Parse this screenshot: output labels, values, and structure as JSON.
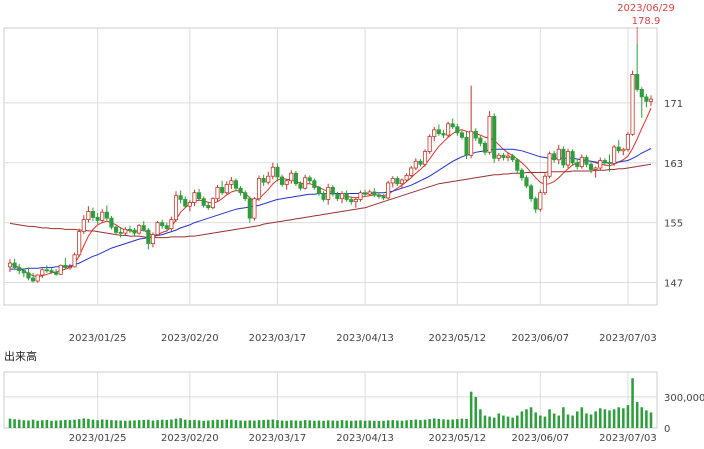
{
  "chart_data": {
    "type": "candlestick",
    "price_axis": {
      "ylim": [
        144,
        181
      ],
      "ticks": [
        "147",
        "155",
        "163",
        "171"
      ]
    },
    "volume_axis": {
      "ylim": [
        0,
        540000
      ],
      "ticks": [
        "300,000",
        "0"
      ]
    },
    "x_ticks": [
      "2023/01/25",
      "2023/02/20",
      "2023/03/17",
      "2023/04/13",
      "2023/05/12",
      "2023/06/07",
      "2023/07/03"
    ],
    "volume_label": "出来高",
    "annotation": {
      "date": "2023/06/29",
      "value": "178.9"
    },
    "colors": {
      "up": "#ffffff",
      "down": "#2e9d3c",
      "up_wick": "#c0392b",
      "down_wick": "#2e9d3c",
      "ma_short": "#e0302a",
      "ma_mid": "#2233cc",
      "ma_long": "#9b3030",
      "annotation": "#d64545",
      "grid": "#dddddd",
      "volume": "#2e9d3c"
    },
    "candles": [
      [
        149.1,
        150.1,
        148.4,
        149.6
      ],
      [
        149.6,
        150.2,
        148.8,
        149.0
      ],
      [
        149.0,
        149.5,
        148.1,
        148.6
      ],
      [
        148.6,
        148.9,
        147.7,
        148.3
      ],
      [
        148.3,
        149.0,
        147.3,
        147.6
      ],
      [
        147.6,
        148.3,
        147.0,
        147.2
      ],
      [
        147.2,
        148.1,
        147.0,
        148.0
      ],
      [
        148.0,
        148.9,
        147.6,
        148.7
      ],
      [
        148.7,
        149.3,
        148.3,
        148.6
      ],
      [
        148.6,
        148.9,
        148.2,
        148.4
      ],
      [
        148.4,
        148.8,
        147.9,
        148.1
      ],
      [
        148.1,
        149.4,
        148.0,
        149.3
      ],
      [
        149.3,
        150.3,
        148.8,
        149.0
      ],
      [
        149.0,
        149.5,
        148.7,
        149.1
      ],
      [
        149.1,
        151.0,
        149.0,
        150.7
      ],
      [
        150.7,
        154.2,
        150.4,
        153.8
      ],
      [
        153.8,
        156.0,
        153.5,
        155.4
      ],
      [
        155.4,
        157.2,
        155.0,
        156.5
      ],
      [
        156.5,
        157.0,
        155.2,
        155.7
      ],
      [
        155.7,
        156.3,
        154.8,
        155.3
      ],
      [
        155.3,
        156.8,
        155.0,
        156.4
      ],
      [
        156.4,
        157.3,
        155.3,
        155.6
      ],
      [
        155.6,
        155.9,
        154.1,
        154.4
      ],
      [
        154.4,
        154.6,
        153.4,
        153.7
      ],
      [
        153.7,
        154.4,
        153.0,
        153.6
      ],
      [
        153.6,
        154.4,
        153.3,
        154.1
      ],
      [
        154.1,
        154.6,
        153.6,
        154.0
      ],
      [
        154.0,
        154.3,
        153.2,
        153.6
      ],
      [
        153.6,
        154.8,
        153.4,
        154.6
      ],
      [
        154.6,
        155.2,
        153.8,
        154.0
      ],
      [
        154.0,
        154.3,
        151.4,
        152.2
      ],
      [
        152.2,
        153.7,
        151.7,
        153.4
      ],
      [
        153.4,
        155.2,
        153.2,
        155.0
      ],
      [
        155.0,
        155.4,
        154.2,
        154.6
      ],
      [
        154.6,
        155.0,
        153.8,
        154.2
      ],
      [
        154.2,
        155.8,
        153.9,
        155.4
      ],
      [
        155.4,
        159.2,
        155.1,
        158.6
      ],
      [
        158.6,
        159.3,
        157.6,
        158.1
      ],
      [
        158.1,
        158.5,
        156.9,
        157.2
      ],
      [
        157.2,
        158.0,
        156.5,
        157.7
      ],
      [
        157.7,
        159.4,
        157.2,
        159.0
      ],
      [
        159.0,
        159.5,
        157.9,
        158.2
      ],
      [
        158.2,
        158.5,
        157.0,
        157.3
      ],
      [
        157.3,
        157.7,
        156.7,
        157.0
      ],
      [
        157.0,
        158.4,
        156.8,
        158.2
      ],
      [
        158.2,
        160.0,
        157.8,
        159.7
      ],
      [
        159.7,
        160.6,
        158.7,
        159.0
      ],
      [
        159.0,
        160.5,
        158.8,
        160.1
      ],
      [
        160.1,
        161.1,
        159.5,
        160.6
      ],
      [
        160.6,
        160.9,
        159.2,
        159.6
      ],
      [
        159.6,
        159.9,
        158.6,
        159.0
      ],
      [
        159.0,
        159.3,
        157.9,
        158.2
      ],
      [
        158.2,
        158.5,
        155.0,
        155.6
      ],
      [
        155.6,
        158.4,
        155.3,
        158.2
      ],
      [
        158.2,
        161.3,
        157.9,
        160.9
      ],
      [
        160.9,
        161.4,
        159.9,
        160.4
      ],
      [
        160.4,
        161.8,
        160.1,
        161.2
      ],
      [
        161.2,
        163.0,
        160.8,
        162.4
      ],
      [
        162.4,
        162.9,
        160.5,
        161.1
      ],
      [
        161.1,
        161.4,
        159.8,
        160.1
      ],
      [
        160.1,
        160.8,
        159.4,
        160.6
      ],
      [
        160.6,
        162.0,
        160.2,
        161.6
      ],
      [
        161.6,
        161.9,
        159.9,
        160.2
      ],
      [
        160.2,
        160.5,
        159.3,
        159.6
      ],
      [
        159.6,
        161.4,
        159.4,
        161.0
      ],
      [
        161.0,
        161.3,
        160.2,
        160.6
      ],
      [
        160.6,
        160.9,
        159.4,
        159.7
      ],
      [
        159.7,
        159.9,
        158.6,
        158.9
      ],
      [
        158.9,
        159.2,
        157.8,
        158.1
      ],
      [
        158.1,
        160.2,
        157.4,
        159.7
      ],
      [
        159.7,
        160.0,
        158.5,
        158.8
      ],
      [
        158.8,
        159.1,
        157.9,
        158.2
      ],
      [
        158.2,
        159.2,
        157.6,
        158.9
      ],
      [
        158.9,
        159.3,
        157.8,
        158.1
      ],
      [
        158.1,
        158.5,
        157.4,
        157.8
      ],
      [
        157.8,
        158.4,
        157.0,
        158.1
      ],
      [
        158.1,
        159.3,
        157.8,
        159.0
      ],
      [
        159.0,
        159.4,
        158.5,
        158.8
      ],
      [
        158.8,
        159.4,
        158.6,
        159.1
      ],
      [
        159.1,
        159.6,
        158.4,
        158.7
      ],
      [
        158.7,
        159.0,
        158.2,
        158.5
      ],
      [
        158.5,
        158.8,
        158.0,
        158.3
      ],
      [
        158.3,
        160.6,
        158.1,
        160.3
      ],
      [
        160.3,
        161.2,
        159.7,
        160.9
      ],
      [
        160.9,
        161.2,
        159.9,
        160.2
      ],
      [
        160.2,
        160.9,
        159.6,
        160.7
      ],
      [
        160.7,
        161.6,
        160.4,
        161.3
      ],
      [
        161.3,
        162.6,
        161.0,
        162.3
      ],
      [
        162.3,
        163.6,
        162.0,
        163.2
      ],
      [
        163.2,
        163.5,
        162.5,
        162.8
      ],
      [
        162.8,
        164.8,
        162.5,
        164.5
      ],
      [
        164.5,
        166.8,
        164.2,
        166.5
      ],
      [
        166.5,
        167.8,
        165.9,
        167.4
      ],
      [
        167.4,
        168.1,
        166.6,
        166.9
      ],
      [
        166.9,
        167.4,
        166.3,
        166.7
      ],
      [
        166.7,
        168.5,
        166.4,
        168.2
      ],
      [
        168.2,
        168.9,
        167.5,
        167.8
      ],
      [
        167.8,
        168.2,
        166.6,
        167.0
      ],
      [
        167.0,
        167.3,
        166.1,
        166.4
      ],
      [
        166.4,
        167.2,
        163.5,
        164.0
      ],
      [
        164.0,
        173.3,
        163.6,
        167.2
      ],
      [
        167.2,
        167.6,
        165.9,
        166.3
      ],
      [
        166.3,
        166.6,
        165.2,
        165.6
      ],
      [
        165.6,
        165.9,
        164.0,
        164.4
      ],
      [
        164.4,
        169.9,
        164.1,
        169.2
      ],
      [
        169.2,
        169.6,
        163.0,
        163.6
      ],
      [
        163.6,
        164.3,
        163.2,
        164.0
      ],
      [
        164.0,
        164.3,
        163.3,
        163.7
      ],
      [
        163.7,
        164.4,
        163.2,
        163.9
      ],
      [
        163.9,
        164.2,
        163.1,
        163.4
      ],
      [
        163.4,
        163.6,
        161.6,
        162.0
      ],
      [
        162.0,
        162.3,
        160.6,
        161.0
      ],
      [
        161.0,
        161.3,
        159.6,
        159.9
      ],
      [
        159.9,
        160.2,
        157.8,
        158.2
      ],
      [
        158.2,
        158.5,
        156.3,
        156.8
      ],
      [
        156.8,
        159.4,
        156.5,
        159.0
      ],
      [
        159.0,
        161.6,
        158.7,
        161.2
      ],
      [
        161.2,
        164.5,
        160.9,
        164.2
      ],
      [
        164.2,
        164.6,
        163.0,
        163.4
      ],
      [
        163.4,
        165.4,
        162.8,
        164.8
      ],
      [
        164.8,
        165.2,
        162.3,
        162.7
      ],
      [
        162.7,
        164.9,
        162.3,
        164.5
      ],
      [
        164.5,
        164.8,
        162.6,
        163.0
      ],
      [
        163.0,
        163.4,
        162.1,
        162.5
      ],
      [
        162.5,
        164.1,
        162.2,
        163.7
      ],
      [
        163.7,
        164.0,
        162.4,
        162.8
      ],
      [
        162.8,
        163.2,
        161.6,
        162.1
      ],
      [
        162.1,
        162.5,
        161.0,
        162.3
      ],
      [
        162.3,
        163.7,
        162.0,
        163.3
      ],
      [
        163.3,
        163.6,
        162.7,
        163.0
      ],
      [
        163.0,
        164.1,
        161.8,
        162.9
      ],
      [
        162.9,
        165.4,
        162.6,
        165.1
      ],
      [
        165.1,
        166.0,
        164.3,
        164.6
      ],
      [
        164.6,
        165.0,
        164.0,
        164.8
      ],
      [
        164.8,
        167.1,
        164.5,
        166.8
      ],
      [
        166.8,
        175.3,
        166.6,
        174.8
      ],
      [
        174.8,
        178.9,
        172.5,
        172.8
      ],
      [
        172.8,
        173.1,
        169.0,
        171.8
      ],
      [
        171.8,
        172.2,
        170.4,
        171.2
      ],
      [
        171.2,
        172.0,
        170.6,
        171.5
      ]
    ],
    "ma_short": [
      149.5,
      149.3,
      149.0,
      148.6,
      148.2,
      147.9,
      147.8,
      147.9,
      148.1,
      148.3,
      148.4,
      148.6,
      148.8,
      149.0,
      149.5,
      150.6,
      151.9,
      153.2,
      154.1,
      154.7,
      155.0,
      155.2,
      155.0,
      154.7,
      154.3,
      154.0,
      153.9,
      153.8,
      153.9,
      154.0,
      153.6,
      153.3,
      153.4,
      153.7,
      153.9,
      154.4,
      155.4,
      156.4,
      157.0,
      157.5,
      157.9,
      158.0,
      157.9,
      157.7,
      157.6,
      157.8,
      158.2,
      158.7,
      159.1,
      159.3,
      159.2,
      158.9,
      158.3,
      157.9,
      158.2,
      158.8,
      159.4,
      160.2,
      160.7,
      160.9,
      160.8,
      160.7,
      160.5,
      160.3,
      160.2,
      160.2,
      160.0,
      159.7,
      159.4,
      159.2,
      159.0,
      158.8,
      158.6,
      158.5,
      158.4,
      158.3,
      158.4,
      158.5,
      158.6,
      158.7,
      158.7,
      158.6,
      158.8,
      159.2,
      159.6,
      160.0,
      160.5,
      161.0,
      161.6,
      162.1,
      162.7,
      163.5,
      164.4,
      165.2,
      165.8,
      166.4,
      166.9,
      167.3,
      167.4,
      167.2,
      167.0,
      166.9,
      166.7,
      166.4,
      166.3,
      166.0,
      165.4,
      164.8,
      164.3,
      164.0,
      163.5,
      163.0,
      162.4,
      161.7,
      161.0,
      160.4,
      160.1,
      160.2,
      160.5,
      161.0,
      161.6,
      162.2,
      162.7,
      163.0,
      163.2,
      163.3,
      163.2,
      163.0,
      162.8,
      162.7,
      162.6,
      162.8,
      163.1,
      163.4,
      163.9,
      164.9,
      166.2,
      167.6,
      168.9,
      170.3
    ],
    "ma_mid": [
      148.8,
      148.8,
      148.8,
      148.8,
      148.9,
      148.9,
      148.9,
      149.0,
      149.0,
      149.0,
      149.1,
      149.1,
      149.2,
      149.2,
      149.4,
      149.6,
      149.9,
      150.2,
      150.5,
      150.7,
      151.0,
      151.3,
      151.6,
      151.8,
      152.0,
      152.2,
      152.4,
      152.6,
      152.8,
      152.9,
      153.0,
      153.1,
      153.3,
      153.4,
      153.6,
      153.8,
      154.0,
      154.3,
      154.5,
      154.7,
      155.0,
      155.2,
      155.4,
      155.6,
      155.8,
      156.0,
      156.2,
      156.4,
      156.6,
      156.8,
      156.9,
      157.0,
      157.1,
      157.2,
      157.3,
      157.5,
      157.7,
      157.9,
      158.1,
      158.2,
      158.3,
      158.4,
      158.5,
      158.6,
      158.7,
      158.8,
      158.8,
      158.9,
      158.9,
      158.9,
      158.9,
      158.9,
      158.9,
      158.9,
      158.9,
      158.9,
      158.9,
      158.9,
      158.9,
      159.0,
      159.0,
      159.0,
      159.1,
      159.2,
      159.4,
      159.6,
      159.8,
      160.0,
      160.3,
      160.6,
      160.9,
      161.2,
      161.6,
      162.0,
      162.4,
      162.8,
      163.2,
      163.5,
      163.8,
      164.0,
      164.2,
      164.4,
      164.5,
      164.6,
      164.7,
      164.8,
      164.8,
      164.8,
      164.8,
      164.8,
      164.7,
      164.6,
      164.4,
      164.2,
      164.0,
      163.8,
      163.7,
      163.6,
      163.6,
      163.6,
      163.6,
      163.6,
      163.6,
      163.5,
      163.4,
      163.3,
      163.2,
      163.1,
      163.0,
      163.0,
      163.0,
      163.0,
      163.1,
      163.2,
      163.3,
      163.6,
      163.9,
      164.3,
      164.6,
      164.9
    ],
    "ma_long": [
      154.9,
      154.8,
      154.7,
      154.6,
      154.5,
      154.5,
      154.4,
      154.3,
      154.3,
      154.2,
      154.2,
      154.2,
      154.1,
      154.1,
      154.1,
      154.0,
      154.0,
      153.9,
      153.9,
      153.8,
      153.7,
      153.6,
      153.5,
      153.4,
      153.3,
      153.3,
      153.2,
      153.2,
      153.2,
      153.1,
      153.0,
      153.0,
      153.0,
      153.0,
      153.0,
      153.1,
      153.1,
      153.1,
      153.1,
      153.2,
      153.2,
      153.3,
      153.4,
      153.5,
      153.6,
      153.7,
      153.8,
      153.9,
      154.0,
      154.1,
      154.2,
      154.3,
      154.4,
      154.5,
      154.6,
      154.8,
      154.9,
      155.0,
      155.1,
      155.2,
      155.3,
      155.4,
      155.5,
      155.6,
      155.7,
      155.8,
      155.9,
      156.0,
      156.1,
      156.2,
      156.3,
      156.4,
      156.5,
      156.6,
      156.7,
      156.8,
      156.9,
      157.0,
      157.2,
      157.4,
      157.6,
      157.8,
      158.0,
      158.2,
      158.4,
      158.6,
      158.8,
      159.0,
      159.2,
      159.4,
      159.6,
      159.8,
      160.0,
      160.2,
      160.3,
      160.4,
      160.5,
      160.6,
      160.7,
      160.8,
      160.9,
      161.0,
      161.1,
      161.2,
      161.3,
      161.4,
      161.4,
      161.5,
      161.5,
      161.6,
      161.6,
      161.6,
      161.7,
      161.7,
      161.7,
      161.7,
      161.7,
      161.8,
      161.8,
      161.8,
      161.8,
      161.8,
      161.9,
      161.9,
      161.9,
      161.9,
      161.9,
      162.0,
      162.0,
      162.0,
      162.1,
      162.1,
      162.2,
      162.2,
      162.3,
      162.4,
      162.5,
      162.6,
      162.7,
      162.8
    ],
    "volume": [
      90000,
      85000,
      80000,
      75000,
      72000,
      80000,
      70000,
      75000,
      78000,
      70000,
      72000,
      74000,
      78000,
      76000,
      80000,
      85000,
      92000,
      88000,
      80000,
      75000,
      82000,
      80000,
      76000,
      74000,
      72000,
      70000,
      72000,
      74000,
      76000,
      78000,
      80000,
      72000,
      76000,
      80000,
      78000,
      82000,
      90000,
      95000,
      80000,
      76000,
      78000,
      74000,
      70000,
      72000,
      76000,
      80000,
      78000,
      82000,
      80000,
      76000,
      72000,
      70000,
      74000,
      72000,
      76000,
      78000,
      80000,
      82000,
      76000,
      72000,
      70000,
      74000,
      72000,
      70000,
      76000,
      74000,
      70000,
      72000,
      70000,
      74000,
      72000,
      70000,
      76000,
      72000,
      70000,
      72000,
      74000,
      70000,
      72000,
      70000,
      68000,
      70000,
      74000,
      76000,
      72000,
      70000,
      74000,
      78000,
      82000,
      76000,
      80000,
      86000,
      92000,
      88000,
      84000,
      80000,
      82000,
      86000,
      90000,
      88000,
      350000,
      300000,
      180000,
      120000,
      110000,
      100000,
      140000,
      120000,
      110000,
      100000,
      120000,
      160000,
      180000,
      200000,
      150000,
      120000,
      110000,
      180000,
      140000,
      120000,
      200000,
      130000,
      120000,
      160000,
      200000,
      140000,
      130000,
      160000,
      190000,
      180000,
      170000,
      180000,
      200000,
      190000,
      220000,
      480000,
      250000,
      200000,
      170000,
      150000
    ]
  }
}
